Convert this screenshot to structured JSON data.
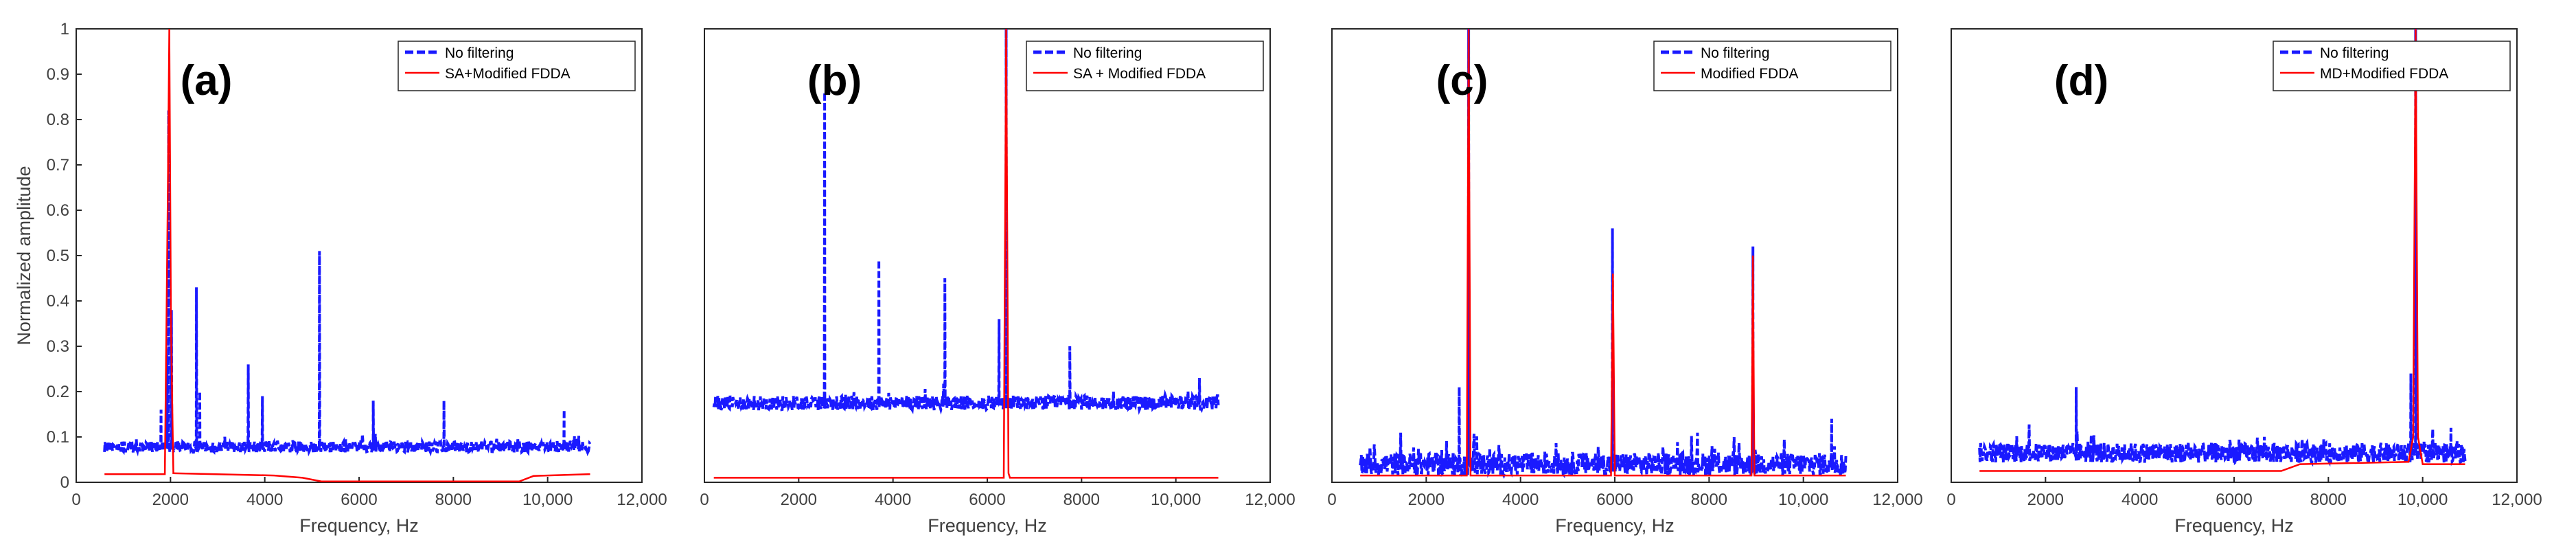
{
  "chart_data": [
    {
      "type": "line",
      "label": "(a)",
      "xlabel": "Frequency, Hz",
      "ylabel": "Normalized amplitude",
      "xlim": [
        0,
        12000
      ],
      "ylim": [
        0,
        1
      ],
      "xticks": [
        "0",
        "2000",
        "4000",
        "6000",
        "8000",
        "10,000",
        "12,000"
      ],
      "yticks": [
        "0",
        "0.1",
        "0.2",
        "0.3",
        "0.4",
        "0.5",
        "0.6",
        "0.7",
        "0.8",
        "0.9",
        "1"
      ],
      "legend": [
        "No filtering",
        "SA+Modified FDDA"
      ],
      "series": [
        {
          "name": "No filtering",
          "style": "dashed",
          "color": "#1a1aff",
          "baseline": 0.078,
          "noise": 0.012,
          "x_range": [
            600,
            10900
          ],
          "peaks": [
            [
              1800,
              0.16
            ],
            [
              1920,
              0.28
            ],
            [
              1960,
              0.82
            ],
            [
              2020,
              0.38
            ],
            [
              2550,
              0.43
            ],
            [
              2620,
              0.2
            ],
            [
              3650,
              0.26
            ],
            [
              3950,
              0.19
            ],
            [
              5160,
              0.51
            ],
            [
              6300,
              0.18
            ],
            [
              7800,
              0.18
            ],
            [
              10350,
              0.16
            ]
          ]
        },
        {
          "name": "SA+Modified FDDA",
          "style": "solid",
          "color": "#ff0000",
          "points": [
            [
              600,
              0.018
            ],
            [
              1880,
              0.018
            ],
            [
              1940,
              0.6
            ],
            [
              1975,
              1.0
            ],
            [
              2010,
              0.35
            ],
            [
              2060,
              0.02
            ],
            [
              4200,
              0.015
            ],
            [
              4800,
              0.01
            ],
            [
              5200,
              0.002
            ],
            [
              9400,
              0.002
            ],
            [
              9700,
              0.014
            ],
            [
              10900,
              0.018
            ]
          ]
        }
      ]
    },
    {
      "type": "line",
      "label": "(b)",
      "xlabel": "Frequency, Hz",
      "xlim": [
        0,
        12000
      ],
      "ylim": [
        0,
        1
      ],
      "xticks": [
        "0",
        "2000",
        "4000",
        "6000",
        "8000",
        "10,000",
        "12,000"
      ],
      "legend": [
        "No filtering",
        "SA + Modified FDDA"
      ],
      "series": [
        {
          "name": "No filtering",
          "style": "dashed",
          "color": "#1a1aff",
          "baseline": 0.175,
          "noise": 0.016,
          "x_range": [
            200,
            10900
          ],
          "peaks": [
            [
              2550,
              0.86
            ],
            [
              3700,
              0.49
            ],
            [
              5100,
              0.45
            ],
            [
              6250,
              0.36
            ],
            [
              6400,
              1.0
            ],
            [
              7750,
              0.3
            ],
            [
              10500,
              0.23
            ]
          ]
        },
        {
          "name": "SA + Modified FDDA",
          "style": "solid",
          "color": "#ff0000",
          "points": [
            [
              200,
              0.01
            ],
            [
              6350,
              0.01
            ],
            [
              6400,
              1.0
            ],
            [
              6450,
              0.02
            ],
            [
              6480,
              0.01
            ],
            [
              10900,
              0.01
            ]
          ]
        }
      ]
    },
    {
      "type": "line",
      "label": "(c)",
      "xlabel": "Frequency, Hz",
      "xlim": [
        0,
        12000
      ],
      "ylim": [
        0,
        1
      ],
      "xticks": [
        "0",
        "2000",
        "4000",
        "6000",
        "8000",
        "10,000",
        "12,000"
      ],
      "legend": [
        "No filtering",
        "Modified FDDA"
      ],
      "series": [
        {
          "name": "No filtering",
          "style": "dashed",
          "color": "#1a1aff",
          "baseline": 0.04,
          "noise": 0.025,
          "x_range": [
            600,
            10900
          ],
          "peaks": [
            [
              2700,
              0.21
            ],
            [
              2900,
              1.0
            ],
            [
              5950,
              0.56
            ],
            [
              8930,
              0.52
            ],
            [
              10600,
              0.14
            ]
          ]
        },
        {
          "name": "Modified FDDA",
          "style": "solid",
          "color": "#ff0000",
          "points": [
            [
              600,
              0.015
            ],
            [
              2860,
              0.015
            ],
            [
              2900,
              1.0
            ],
            [
              2940,
              0.015
            ],
            [
              5920,
              0.015
            ],
            [
              5960,
              0.46
            ],
            [
              6000,
              0.015
            ],
            [
              8900,
              0.015
            ],
            [
              8930,
              0.5
            ],
            [
              8960,
              0.015
            ],
            [
              10900,
              0.015
            ]
          ]
        }
      ]
    },
    {
      "type": "line",
      "label": "(d)",
      "xlabel": "Frequency, Hz",
      "xlim": [
        0,
        12000
      ],
      "ylim": [
        0,
        1
      ],
      "xticks": [
        "0",
        "2000",
        "4000",
        "6000",
        "8000",
        "10,000",
        "12,000"
      ],
      "legend": [
        "No filtering",
        "MD+Modified FDDA"
      ],
      "series": [
        {
          "name": "No filtering",
          "style": "dashed",
          "color": "#1a1aff",
          "baseline": 0.065,
          "noise": 0.022,
          "x_range": [
            600,
            10900
          ],
          "peaks": [
            [
              2650,
              0.21
            ],
            [
              9750,
              0.24
            ],
            [
              9850,
              1.0
            ],
            [
              10600,
              0.12
            ]
          ]
        },
        {
          "name": "MD+Modified FDDA",
          "style": "solid",
          "color": "#ff0000",
          "points": [
            [
              600,
              0.025
            ],
            [
              7000,
              0.025
            ],
            [
              7400,
              0.04
            ],
            [
              9700,
              0.045
            ],
            [
              9800,
              0.1
            ],
            [
              9850,
              1.0
            ],
            [
              9900,
              0.1
            ],
            [
              10000,
              0.04
            ],
            [
              10900,
              0.04
            ]
          ]
        }
      ]
    }
  ]
}
